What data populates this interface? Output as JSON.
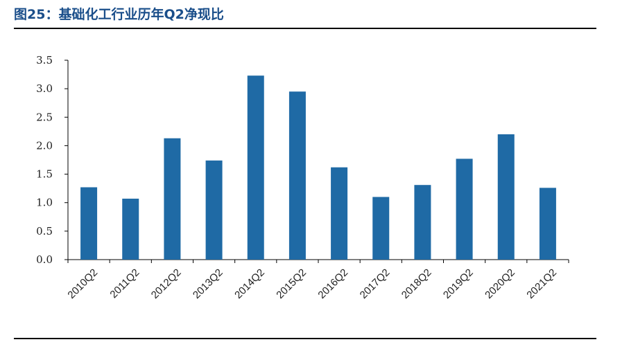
{
  "title": "图25：基础化工行业历年Q2净现比",
  "colors": {
    "bar": "#1f6aa5",
    "title": "#1a4e8a",
    "axis": "#000000"
  },
  "chart_data": {
    "type": "bar",
    "title": "图25：基础化工行业历年Q2净现比",
    "xlabel": "",
    "ylabel": "",
    "categories": [
      "2010Q2",
      "2011Q2",
      "2012Q2",
      "2013Q2",
      "2014Q2",
      "2015Q2",
      "2016Q2",
      "2017Q2",
      "2018Q2",
      "2019Q2",
      "2020Q2",
      "2021Q2"
    ],
    "values": [
      1.27,
      1.07,
      2.13,
      1.74,
      3.23,
      2.95,
      1.62,
      1.1,
      1.31,
      1.77,
      2.2,
      1.26
    ],
    "ylim": [
      0,
      3.5
    ],
    "yticks": [
      "0.0",
      "0.5",
      "1.0",
      "1.5",
      "2.0",
      "2.5",
      "3.0",
      "3.5"
    ],
    "grid": false,
    "legend": "none"
  }
}
